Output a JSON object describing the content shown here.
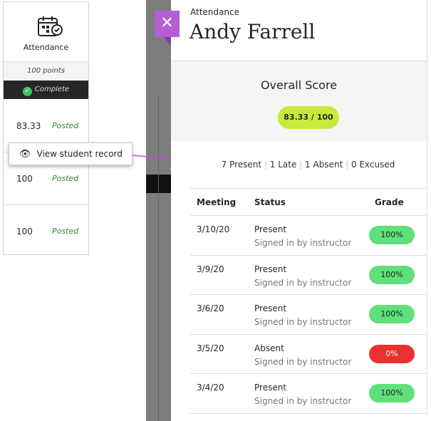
{
  "left_column": {
    "title": "Attendance",
    "icon": "calendar-check-icon",
    "points": "100 points",
    "status": "Complete",
    "rows": [
      {
        "score": "83.33",
        "status": "Posted"
      },
      {
        "score": "100",
        "status": "Posted"
      },
      {
        "score": "100",
        "status": "Posted"
      }
    ]
  },
  "context_menu": {
    "item": "View student record",
    "icon": "eye-icon"
  },
  "panel": {
    "subtitle": "Attendance",
    "student": "Andy Farrell",
    "close_icon": "close-icon",
    "overall_label": "Overall Score",
    "overall_score": "83.33 / 100",
    "summary": [
      "7 Present",
      "1 Late",
      "1 Absent",
      "0 Excused"
    ],
    "table": {
      "headers": [
        "Meeting",
        "Status",
        "Grade"
      ],
      "rows": [
        {
          "date": "3/10/20",
          "status": "Present",
          "note": "Signed in by instructor",
          "grade": "100%"
        },
        {
          "date": "3/9/20",
          "status": "Present",
          "note": "Signed in by instructor",
          "grade": "100%"
        },
        {
          "date": "3/6/20",
          "status": "Present",
          "note": "Signed in by instructor",
          "grade": "100%"
        },
        {
          "date": "3/5/20",
          "status": "Absent",
          "note": "Signed in by instructor",
          "grade": "0%"
        },
        {
          "date": "3/4/20",
          "status": "Present",
          "note": "Signed in by instructor",
          "grade": "100%"
        }
      ]
    }
  },
  "colors": {
    "accent": "#b45fd2",
    "score_pill": "#c8ea3c",
    "grade_good": "#5ee07a",
    "grade_bad": "#ea3030"
  }
}
